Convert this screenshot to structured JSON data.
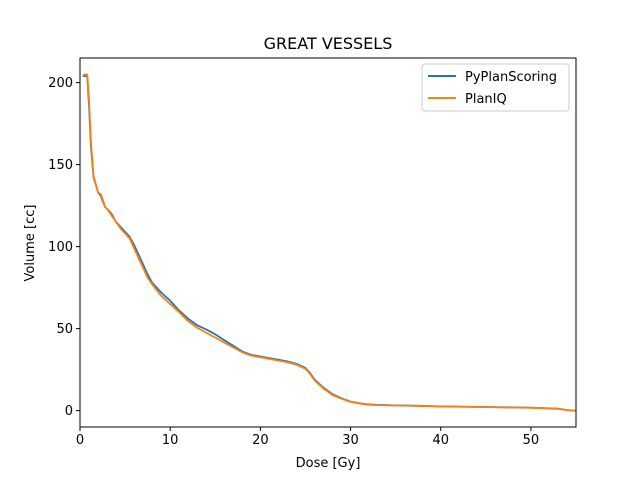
{
  "chart_data": {
    "type": "line",
    "title": "GREAT VESSELS",
    "xlabel": "Dose [Gy]",
    "ylabel": "Volume [cc]",
    "xlim": [
      0,
      55
    ],
    "ylim": [
      -10,
      215
    ],
    "xticks": [
      0,
      10,
      20,
      30,
      40,
      50
    ],
    "yticks": [
      0,
      50,
      100,
      150,
      200
    ],
    "grid": false,
    "legend": "top-right",
    "series": [
      {
        "name": "PyPlanScoring",
        "color": "#1f77b4",
        "x": [
          0.3,
          0.5,
          0.6,
          0.8,
          1.0,
          1.2,
          1.5,
          1.8,
          2.0,
          2.3,
          2.5,
          2.8,
          3.0,
          3.5,
          4.0,
          4.5,
          5.0,
          5.5,
          6.0,
          6.5,
          7.0,
          7.5,
          8.0,
          9.0,
          10.0,
          11.0,
          12.0,
          13.0,
          14.0,
          15.0,
          16.0,
          17.0,
          18.0,
          19.0,
          20.0,
          21.0,
          22.0,
          23.0,
          24.0,
          25.0,
          25.5,
          26.0,
          27.0,
          28.0,
          29.0,
          30.0,
          31.0,
          32.0,
          33.0,
          35.0,
          37.0,
          40.0,
          45.0,
          50.0,
          53.0,
          54.0,
          55.0
        ],
        "y": [
          204,
          204,
          204,
          204,
          186,
          162,
          142,
          137,
          133,
          131,
          128,
          124,
          123,
          120,
          115,
          112,
          109,
          106,
          101,
          95,
          89,
          83,
          78,
          72,
          67,
          61,
          56,
          52,
          49.5,
          46.5,
          43,
          39.5,
          36,
          34,
          33,
          32,
          31,
          30,
          28.5,
          26,
          23,
          19,
          14,
          10,
          7.5,
          5.5,
          4.5,
          3.8,
          3.5,
          3.2,
          3.0,
          2.6,
          2.2,
          1.8,
          1.2,
          0.3,
          0.0
        ]
      },
      {
        "name": "PlanIQ",
        "color": "#ff7f0e",
        "x": [
          0.3,
          0.5,
          0.6,
          0.8,
          1.0,
          1.2,
          1.5,
          1.8,
          2.0,
          2.3,
          2.5,
          2.8,
          3.0,
          3.5,
          4.0,
          4.5,
          5.0,
          5.5,
          6.0,
          6.5,
          7.0,
          7.5,
          8.0,
          9.0,
          10.0,
          11.0,
          12.0,
          13.0,
          14.0,
          15.0,
          16.0,
          17.0,
          18.0,
          19.0,
          20.0,
          21.0,
          22.0,
          23.0,
          24.0,
          25.0,
          25.5,
          26.0,
          27.0,
          28.0,
          29.0,
          30.0,
          31.0,
          32.0,
          33.0,
          35.0,
          37.0,
          40.0,
          45.0,
          50.0,
          53.0,
          54.0,
          55.0
        ],
        "y": [
          204,
          205,
          205,
          205,
          190,
          165,
          143,
          137,
          133,
          132,
          129,
          124,
          123,
          119,
          115,
          111,
          108,
          105,
          99,
          93,
          87,
          81,
          77,
          70,
          65,
          60,
          54.5,
          50.5,
          47.5,
          44.5,
          41.5,
          38.5,
          35.5,
          33.5,
          32.5,
          31.5,
          30.5,
          29.5,
          28,
          25.5,
          22.5,
          18.5,
          13.5,
          9.5,
          7.2,
          5.3,
          4.3,
          3.6,
          3.3,
          3.1,
          2.9,
          2.5,
          2.1,
          1.7,
          1.1,
          0.3,
          0.0
        ]
      }
    ]
  }
}
